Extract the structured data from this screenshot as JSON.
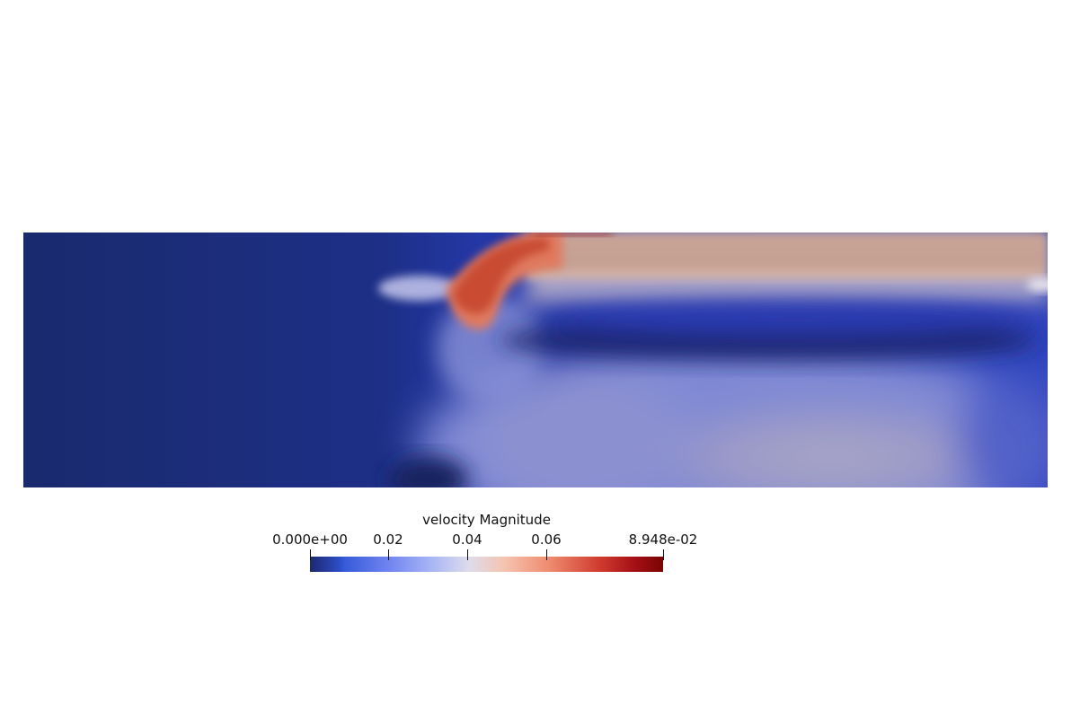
{
  "visualization": {
    "field_name": "velocity Magnitude",
    "colormap": "cool-to-warm",
    "colors": {
      "low": "#1b2a73",
      "mid_low": "#3b4cc0",
      "mid": "#dddcec",
      "mid_high": "#e3806a",
      "high": "#7a0403",
      "background": "#ffffff"
    }
  },
  "colorbar": {
    "title": "velocity Magnitude",
    "range": [
      0.0,
      0.08948
    ],
    "ticks": [
      {
        "value": 0.0,
        "label": "0.000e+00"
      },
      {
        "value": 0.02,
        "label": "0.02"
      },
      {
        "value": 0.04,
        "label": "0.04"
      },
      {
        "value": 0.06,
        "label": "0.06"
      },
      {
        "value": 0.08948,
        "label": "8.948e-02"
      }
    ]
  }
}
